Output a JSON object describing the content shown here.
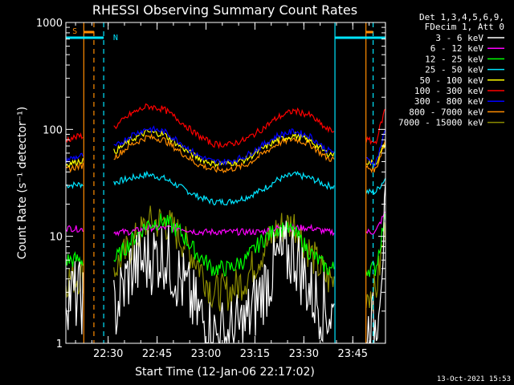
{
  "chart_data": {
    "type": "line",
    "title": "RHESSI Observing Summary Count Rates",
    "xlabel": "Start Time (12-Jan-06 22:17:02)",
    "ylabel": "Count Rate (s⁻¹ detector⁻¹)",
    "y_scale": "log",
    "ylim": [
      1,
      1000
    ],
    "xlim": [
      "22:17:02",
      "23:55:00"
    ],
    "x_ticks": [
      "22:30",
      "22:45",
      "23:00",
      "23:15",
      "23:30",
      "23:45"
    ],
    "y_ticks": [
      "1",
      "10",
      "100",
      "1000"
    ],
    "legend_header": [
      "Det 1,3,4,5,6,9,",
      "FDecim 1, Att 0"
    ],
    "legend_position": "right",
    "footer": "13-Oct-2021 15:53",
    "flags": [
      {
        "label": "S",
        "color": "#ff8c00"
      },
      {
        "label": "N",
        "color": "#00e5ff"
      }
    ],
    "gaps_minutes_from_start": [
      [
        5.5,
        14.5
      ],
      [
        82.5,
        92.0
      ]
    ],
    "series": [
      {
        "name": "3 - 6 keV",
        "color": "#ffffff",
        "values": [
          3,
          2,
          5,
          6,
          7,
          4,
          2,
          1.2,
          1.2,
          1.5,
          3,
          6,
          7,
          3,
          2,
          1.2,
          1.5,
          15
        ]
      },
      {
        "name": "6 - 12 keV",
        "color": "#ff00ff",
        "values": [
          12,
          11,
          11,
          12,
          12,
          12,
          11,
          11,
          11,
          11,
          11,
          12,
          12,
          12,
          11,
          11,
          11,
          17
        ]
      },
      {
        "name": "12 - 25 keV",
        "color": "#00ff00",
        "values": [
          6,
          6,
          9,
          13,
          14,
          11,
          7,
          5,
          5,
          6,
          9,
          12,
          11,
          7,
          5,
          5,
          5,
          16
        ]
      },
      {
        "name": "25 - 50 keV",
        "color": "#00e5ff",
        "values": [
          30,
          32,
          35,
          38,
          35,
          29,
          24,
          21,
          21,
          23,
          27,
          34,
          38,
          35,
          30,
          26,
          26,
          35
        ]
      },
      {
        "name": "50 - 100 keV",
        "color": "#ffff00",
        "values": [
          47,
          62,
          80,
          95,
          90,
          70,
          55,
          48,
          48,
          52,
          65,
          80,
          88,
          78,
          60,
          50,
          48,
          75
        ]
      },
      {
        "name": "100 - 300 keV",
        "color": "#ff0000",
        "values": [
          80,
          105,
          140,
          165,
          155,
          120,
          90,
          73,
          72,
          80,
          100,
          130,
          150,
          135,
          100,
          80,
          75,
          160
        ]
      },
      {
        "name": "300 - 800 keV",
        "color": "#0000ff",
        "values": [
          52,
          68,
          88,
          102,
          96,
          76,
          58,
          50,
          50,
          56,
          70,
          88,
          96,
          86,
          64,
          52,
          48,
          100
        ]
      },
      {
        "name": "800 - 7000 keV",
        "color": "#ff8c00",
        "values": [
          42,
          55,
          72,
          85,
          80,
          62,
          48,
          42,
          42,
          46,
          58,
          74,
          82,
          72,
          54,
          44,
          42,
          80
        ]
      },
      {
        "name": "7000 - 15000 keV",
        "color": "#8b8b00",
        "values": [
          4,
          5,
          8,
          13,
          14,
          10,
          6,
          3,
          3,
          4,
          7,
          12,
          13,
          7,
          4,
          3,
          3,
          12
        ]
      }
    ],
    "x_minutes_from_start": [
      0,
      15,
      20,
      25,
      30,
      35,
      40,
      45,
      50,
      55,
      60,
      65,
      70,
      75,
      80,
      92,
      95,
      98
    ]
  }
}
